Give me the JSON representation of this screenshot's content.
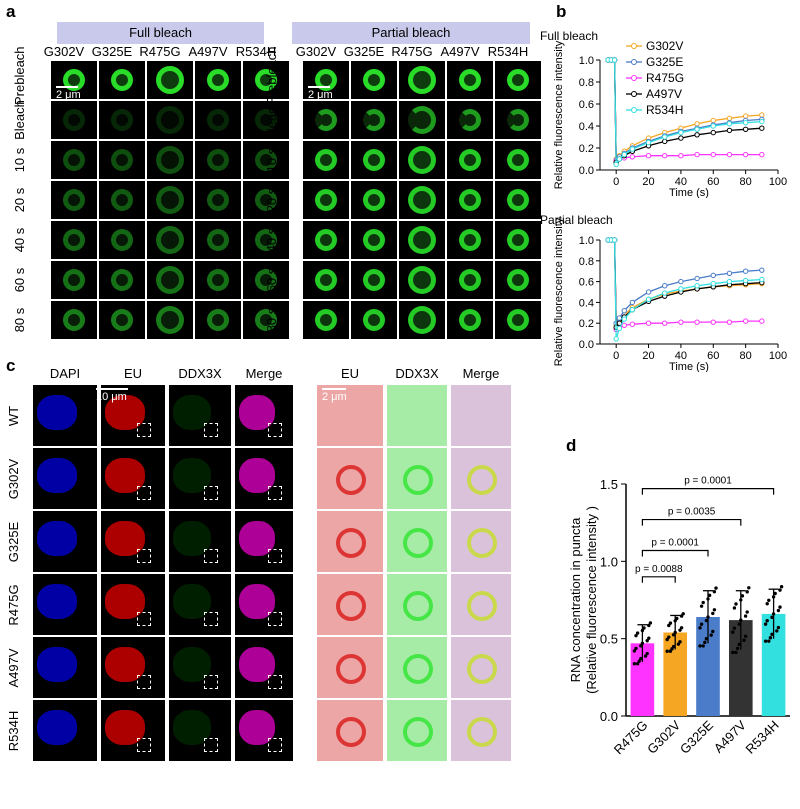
{
  "panels": {
    "a": "a",
    "b": "b",
    "c": "c",
    "d": "d"
  },
  "panel_a": {
    "full_bleach_title": "Full bleach",
    "partial_bleach_title": "Partial bleach",
    "columns": [
      "G302V",
      "G325E",
      "R475G",
      "A497V",
      "R534H"
    ],
    "rows": [
      "Prebleach",
      "Bleach",
      "10 s",
      "20 s",
      "40 s",
      "60 s",
      "80 s"
    ],
    "scale_bar": "2 μm"
  },
  "panel_c": {
    "left_columns": [
      "DAPI",
      "EU",
      "DDX3X",
      "Merge"
    ],
    "right_columns": [
      "EU",
      "DDX3X",
      "Merge"
    ],
    "rows": [
      "WT",
      "G302V",
      "G325E",
      "R475G",
      "A497V",
      "R534H"
    ],
    "scale_bar_left": "10 μm",
    "scale_bar_right": "2 μm"
  },
  "colors": {
    "G302V": "#f5a623",
    "G325E": "#4a7cc9",
    "R475G": "#ff33ff",
    "A497V": "#000000",
    "R534H": "#33e0e0",
    "header_bg": "#c9c9ec"
  },
  "chart_data": [
    {
      "type": "line",
      "title": "Full bleach",
      "xlabel": "Time (s)",
      "ylabel": "Relative fluorescence intensity",
      "xlim": [
        -10,
        100
      ],
      "ylim": [
        0,
        1.0
      ],
      "xticks": [
        0,
        20,
        40,
        60,
        80,
        100
      ],
      "yticks": [
        0.0,
        0.2,
        0.4,
        0.6,
        0.8,
        1.0
      ],
      "legend": "top-right",
      "series": [
        {
          "name": "G302V",
          "x": [
            -5,
            -3,
            -1,
            0,
            2,
            5,
            10,
            20,
            30,
            40,
            50,
            60,
            70,
            80,
            90
          ],
          "y": [
            1.0,
            1.0,
            1.0,
            0.1,
            0.13,
            0.17,
            0.22,
            0.29,
            0.34,
            0.38,
            0.42,
            0.45,
            0.47,
            0.49,
            0.5
          ]
        },
        {
          "name": "G325E",
          "x": [
            -5,
            -3,
            -1,
            0,
            2,
            5,
            10,
            20,
            30,
            40,
            50,
            60,
            70,
            80,
            90
          ],
          "y": [
            1.0,
            1.0,
            1.0,
            0.09,
            0.12,
            0.15,
            0.2,
            0.26,
            0.31,
            0.35,
            0.38,
            0.41,
            0.43,
            0.45,
            0.46
          ]
        },
        {
          "name": "R475G",
          "x": [
            -5,
            -3,
            -1,
            0,
            2,
            5,
            10,
            20,
            30,
            40,
            50,
            60,
            70,
            80,
            90
          ],
          "y": [
            1.0,
            1.0,
            1.0,
            0.08,
            0.1,
            0.11,
            0.12,
            0.13,
            0.13,
            0.13,
            0.14,
            0.14,
            0.14,
            0.14,
            0.14
          ]
        },
        {
          "name": "A497V",
          "x": [
            -5,
            -3,
            -1,
            0,
            2,
            5,
            10,
            20,
            30,
            40,
            50,
            60,
            70,
            80,
            90
          ],
          "y": [
            1.0,
            1.0,
            1.0,
            0.07,
            0.1,
            0.13,
            0.17,
            0.22,
            0.26,
            0.29,
            0.32,
            0.34,
            0.36,
            0.37,
            0.38
          ]
        },
        {
          "name": "R534H",
          "x": [
            -5,
            -3,
            -1,
            0,
            2,
            5,
            10,
            20,
            30,
            40,
            50,
            60,
            70,
            80,
            90
          ],
          "y": [
            1.0,
            1.0,
            1.0,
            0.05,
            0.1,
            0.14,
            0.19,
            0.25,
            0.3,
            0.34,
            0.37,
            0.4,
            0.42,
            0.43,
            0.44
          ]
        }
      ]
    },
    {
      "type": "line",
      "title": "Partial bleach",
      "xlabel": "Time (s)",
      "ylabel": "Relative fluorescence intensity",
      "xlim": [
        -10,
        100
      ],
      "ylim": [
        0,
        1.0
      ],
      "xticks": [
        0,
        20,
        40,
        60,
        80,
        100
      ],
      "yticks": [
        0.0,
        0.2,
        0.4,
        0.6,
        0.8,
        1.0
      ],
      "series": [
        {
          "name": "G302V",
          "x": [
            -5,
            -3,
            -1,
            0,
            2,
            5,
            10,
            20,
            30,
            40,
            50,
            60,
            70,
            80,
            90
          ],
          "y": [
            1.0,
            1.0,
            1.0,
            0.18,
            0.22,
            0.28,
            0.35,
            0.43,
            0.48,
            0.51,
            0.53,
            0.55,
            0.56,
            0.57,
            0.58
          ]
        },
        {
          "name": "G325E",
          "x": [
            -5,
            -3,
            -1,
            0,
            2,
            5,
            10,
            20,
            30,
            40,
            50,
            60,
            70,
            80,
            90
          ],
          "y": [
            1.0,
            1.0,
            1.0,
            0.2,
            0.25,
            0.32,
            0.4,
            0.5,
            0.56,
            0.6,
            0.63,
            0.66,
            0.68,
            0.7,
            0.71
          ]
        },
        {
          "name": "R475G",
          "x": [
            -5,
            -3,
            -1,
            0,
            2,
            5,
            10,
            20,
            30,
            40,
            50,
            60,
            70,
            80,
            90
          ],
          "y": [
            1.0,
            1.0,
            1.0,
            0.14,
            0.16,
            0.18,
            0.19,
            0.2,
            0.2,
            0.21,
            0.21,
            0.21,
            0.21,
            0.22,
            0.22
          ]
        },
        {
          "name": "A497V",
          "x": [
            -5,
            -3,
            -1,
            0,
            2,
            5,
            10,
            20,
            30,
            40,
            50,
            60,
            70,
            80,
            90
          ],
          "y": [
            1.0,
            1.0,
            1.0,
            0.16,
            0.2,
            0.26,
            0.33,
            0.41,
            0.46,
            0.5,
            0.53,
            0.55,
            0.57,
            0.58,
            0.59
          ]
        },
        {
          "name": "R534H",
          "x": [
            -5,
            -3,
            -1,
            0,
            2,
            5,
            10,
            20,
            30,
            40,
            50,
            60,
            70,
            80,
            90
          ],
          "y": [
            1.0,
            1.0,
            1.0,
            0.05,
            0.15,
            0.24,
            0.33,
            0.43,
            0.49,
            0.53,
            0.56,
            0.58,
            0.6,
            0.61,
            0.62
          ]
        }
      ]
    },
    {
      "type": "bar",
      "xlabel": "",
      "ylabel": "RNA concentration in puncta (Relative fluorescence intensity )",
      "ylim": [
        0,
        1.5
      ],
      "yticks": [
        0.0,
        0.5,
        1.0,
        1.5
      ],
      "categories": [
        "R475G",
        "G302V",
        "G325E",
        "A497V",
        "R534H"
      ],
      "values": [
        0.47,
        0.54,
        0.64,
        0.62,
        0.66
      ],
      "errors": [
        0.12,
        0.11,
        0.17,
        0.19,
        0.16
      ],
      "bar_colors": [
        "#ff33ff",
        "#f5a623",
        "#4a7cc9",
        "#333333",
        "#33e0e0"
      ],
      "comparisons": [
        {
          "from": "R475G",
          "to": "G302V",
          "label": "p = 0.0088"
        },
        {
          "from": "R475G",
          "to": "G325E",
          "label": "p = 0.0001"
        },
        {
          "from": "R475G",
          "to": "A497V",
          "label": "p = 0.0035"
        },
        {
          "from": "R475G",
          "to": "R534H",
          "label": "p = 0.0001"
        }
      ]
    }
  ]
}
